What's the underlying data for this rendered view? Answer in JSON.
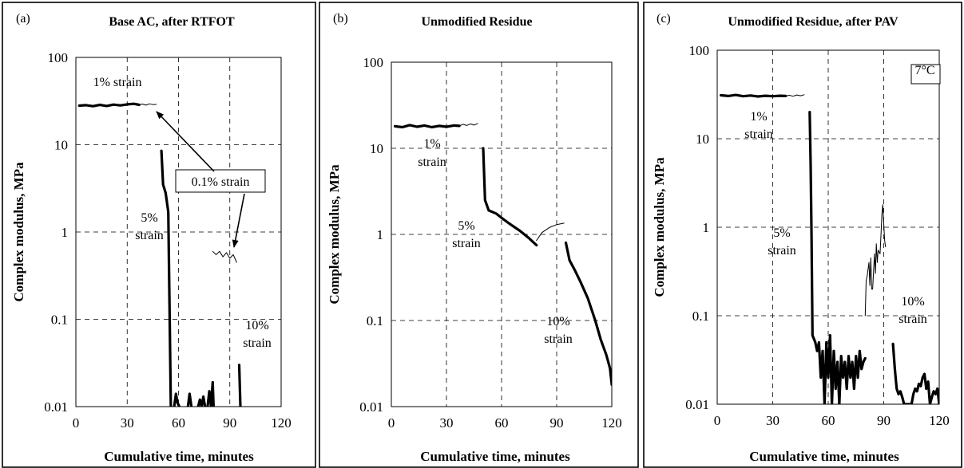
{
  "chart_data": [
    {
      "type": "line",
      "panel_label": "(a)",
      "title": "Base AC, after RTFOT",
      "xlabel": "Cumulative time, minutes",
      "ylabel": "Complex modulus, MPa",
      "xlim": [
        0,
        120
      ],
      "ylim": [
        0.01,
        100
      ],
      "yscale": "log",
      "xticks": [
        "0",
        "30",
        "60",
        "90",
        "120"
      ],
      "yticks": [
        "0.01",
        "0.1",
        "1",
        "10",
        "100"
      ],
      "grid": true,
      "series": [
        {
          "style": "thick",
          "points": [
            [
              2,
              28
            ],
            [
              6,
              28.4
            ],
            [
              10,
              27.6
            ],
            [
              14,
              28.6
            ],
            [
              18,
              27.8
            ],
            [
              22,
              28.8
            ],
            [
              26,
              28.2
            ],
            [
              30,
              29
            ],
            [
              34,
              29.4
            ],
            [
              37,
              28.6
            ]
          ]
        },
        {
          "style": "thin",
          "points": [
            [
              37,
              28.6
            ],
            [
              39,
              29.2
            ],
            [
              41,
              28.4
            ],
            [
              43,
              29.4
            ],
            [
              45,
              28.8
            ],
            [
              47,
              29
            ]
          ]
        },
        {
          "style": "thick",
          "points": [
            [
              50,
              8.5
            ],
            [
              51,
              3.5
            ],
            [
              52.5,
              2.8
            ],
            [
              54,
              1.7
            ],
            [
              55.5,
              0.01
            ]
          ]
        },
        {
          "style": "thick",
          "points": [
            [
              57.5,
              0.01
            ],
            [
              58.5,
              0.014
            ],
            [
              59.5,
              0.011
            ],
            [
              60.5,
              0.01
            ]
          ]
        },
        {
          "style": "thick",
          "points": [
            [
              65.5,
              0.01
            ],
            [
              66.5,
              0.014
            ],
            [
              67.5,
              0.01
            ]
          ]
        },
        {
          "style": "thick",
          "points": [
            [
              71.5,
              0.01
            ],
            [
              72.5,
              0.012
            ],
            [
              73.5,
              0.01
            ],
            [
              74.5,
              0.013
            ],
            [
              75.5,
              0.01
            ]
          ]
        },
        {
          "style": "thick",
          "points": [
            [
              77,
              0.01
            ],
            [
              78,
              0.015
            ],
            [
              79,
              0.01
            ],
            [
              80,
              0.019
            ],
            [
              80.5,
              0.01
            ]
          ]
        },
        {
          "style": "thin",
          "points": [
            [
              80,
              0.6
            ],
            [
              82,
              0.55
            ],
            [
              84,
              0.6
            ],
            [
              86,
              0.52
            ],
            [
              88,
              0.58
            ],
            [
              90,
              0.5
            ],
            [
              92,
              0.55
            ],
            [
              94,
              0.45
            ]
          ]
        },
        {
          "style": "thick",
          "points": [
            [
              95.5,
              0.03
            ],
            [
              96.2,
              0.01
            ]
          ]
        }
      ],
      "annotations": [
        {
          "text": "1% strain",
          "lines": [
            "1% strain"
          ]
        },
        {
          "text": "5% strain",
          "lines": [
            "5%",
            "strain"
          ]
        },
        {
          "text": "10% strain",
          "lines": [
            "10%",
            "strain"
          ]
        },
        {
          "text": "0.1% strain",
          "lines": [
            "0.1% strain"
          ],
          "boxed": true
        }
      ]
    },
    {
      "type": "line",
      "panel_label": "(b)",
      "title": "Unmodified Residue",
      "xlabel": "Cumulative time, minutes",
      "ylabel": "Complex modulus, MPa",
      "xlim": [
        0,
        120
      ],
      "ylim": [
        0.01,
        100
      ],
      "yscale": "log",
      "xticks": [
        "0",
        "30",
        "60",
        "90",
        "120"
      ],
      "yticks": [
        "0.01",
        "0.1",
        "1",
        "10",
        "100"
      ],
      "grid": true,
      "series": [
        {
          "style": "thick",
          "points": [
            [
              2,
              18
            ],
            [
              6,
              17.6
            ],
            [
              10,
              18.6
            ],
            [
              14,
              17.8
            ],
            [
              18,
              18.4
            ],
            [
              22,
              17.6
            ],
            [
              26,
              18.2
            ],
            [
              30,
              17.8
            ],
            [
              34,
              18.4
            ],
            [
              37,
              18.2
            ]
          ]
        },
        {
          "style": "thin",
          "points": [
            [
              37,
              18.2
            ],
            [
              39,
              19
            ],
            [
              41,
              18.4
            ],
            [
              43,
              19.2
            ],
            [
              45,
              18.6
            ],
            [
              47,
              19.4
            ]
          ]
        },
        {
          "style": "thick",
          "points": [
            [
              50,
              10
            ],
            [
              51,
              2.5
            ],
            [
              53,
              1.9
            ],
            [
              57,
              1.75
            ],
            [
              61,
              1.5
            ],
            [
              65,
              1.3
            ],
            [
              70,
              1.1
            ],
            [
              75,
              0.9
            ],
            [
              79,
              0.75
            ]
          ]
        },
        {
          "style": "thin",
          "points": [
            [
              79,
              0.85
            ],
            [
              82,
              1.05
            ],
            [
              86,
              1.2
            ],
            [
              90,
              1.3
            ],
            [
              94,
              1.35
            ]
          ]
        },
        {
          "style": "thick",
          "points": [
            [
              95,
              0.8
            ],
            [
              97,
              0.5
            ],
            [
              100,
              0.38
            ],
            [
              103,
              0.28
            ],
            [
              107,
              0.18
            ],
            [
              111,
              0.1
            ],
            [
              114,
              0.06
            ],
            [
              117,
              0.04
            ],
            [
              119,
              0.028
            ],
            [
              120,
              0.018
            ]
          ]
        }
      ],
      "annotations": [
        {
          "text": "1% strain",
          "lines": [
            "1%",
            "strain"
          ]
        },
        {
          "text": "5% strain",
          "lines": [
            "5%",
            "strain"
          ]
        },
        {
          "text": "10% strain",
          "lines": [
            "10%",
            "strain"
          ]
        }
      ]
    },
    {
      "type": "line",
      "panel_label": "(c)",
      "title": "Unmodified Residue, after PAV",
      "xlabel": "Cumulative time, minutes",
      "ylabel": "Complex modulus, MPa",
      "xlim": [
        0,
        120
      ],
      "ylim": [
        0.01,
        100
      ],
      "yscale": "log",
      "xticks": [
        "0",
        "30",
        "60",
        "90",
        "120"
      ],
      "yticks": [
        "0.01",
        "0.1",
        "1",
        "10",
        "100"
      ],
      "grid": true,
      "series": [
        {
          "style": "thick",
          "points": [
            [
              2,
              31
            ],
            [
              6,
              30.4
            ],
            [
              10,
              31.2
            ],
            [
              14,
              30.2
            ],
            [
              18,
              30.8
            ],
            [
              22,
              30
            ],
            [
              26,
              30.6
            ],
            [
              30,
              30.2
            ],
            [
              34,
              30.6
            ],
            [
              37,
              30.4
            ]
          ]
        },
        {
          "style": "thin",
          "points": [
            [
              37,
              30.4
            ],
            [
              39,
              31
            ],
            [
              41,
              30.2
            ],
            [
              43,
              31.2
            ],
            [
              45,
              30.6
            ],
            [
              47,
              31.4
            ]
          ]
        },
        {
          "style": "thick",
          "points": [
            [
              50,
              20
            ],
            [
              50.5,
              5
            ],
            [
              51,
              0.8
            ],
            [
              51.5,
              0.06
            ],
            [
              53,
              0.05
            ],
            [
              54,
              0.04
            ],
            [
              55,
              0.05
            ],
            [
              56,
              0.02
            ],
            [
              57,
              0.04
            ],
            [
              58,
              0.01
            ],
            [
              59,
              0.05
            ],
            [
              60,
              0.02
            ],
            [
              61,
              0.06
            ],
            [
              62,
              0.01
            ],
            [
              63,
              0.04
            ],
            [
              64,
              0.015
            ],
            [
              65,
              0.03
            ],
            [
              66,
              0.01
            ],
            [
              67,
              0.035
            ],
            [
              68,
              0.02
            ],
            [
              69,
              0.03
            ],
            [
              70,
              0.015
            ],
            [
              71,
              0.035
            ],
            [
              72,
              0.02
            ],
            [
              73,
              0.03
            ],
            [
              74,
              0.015
            ],
            [
              75,
              0.035
            ],
            [
              76,
              0.02
            ],
            [
              77,
              0.04
            ],
            [
              78,
              0.025
            ],
            [
              79,
              0.03
            ],
            [
              80,
              0.033
            ]
          ]
        },
        {
          "style": "thin",
          "points": [
            [
              80,
              0.1
            ],
            [
              80.5,
              0.25
            ],
            [
              81,
              0.28
            ],
            [
              82,
              0.4
            ],
            [
              82.5,
              0.22
            ],
            [
              83,
              0.45
            ],
            [
              83.5,
              0.2
            ],
            [
              84,
              0.2
            ],
            [
              85,
              0.5
            ],
            [
              85.5,
              0.3
            ],
            [
              86,
              0.65
            ],
            [
              86.5,
              0.4
            ],
            [
              87,
              0.55
            ],
            [
              88,
              0.5
            ],
            [
              88.5,
              0.8
            ],
            [
              89,
              1.4
            ],
            [
              89.5,
              1.8
            ],
            [
              90,
              1.1
            ],
            [
              90.5,
              0.7
            ],
            [
              91,
              0.6
            ]
          ]
        },
        {
          "style": "thick",
          "points": [
            [
              95,
              0.048
            ],
            [
              96,
              0.025
            ],
            [
              97,
              0.015
            ],
            [
              98,
              0.013
            ],
            [
              99,
              0.014
            ],
            [
              100,
              0.012
            ],
            [
              101,
              0.01
            ],
            [
              103,
              0.008
            ],
            [
              105,
              0.01
            ],
            [
              106,
              0.013
            ],
            [
              107,
              0.015
            ],
            [
              108,
              0.014
            ],
            [
              109,
              0.017
            ],
            [
              110,
              0.016
            ],
            [
              111,
              0.02
            ],
            [
              112,
              0.022
            ],
            [
              113,
              0.015
            ],
            [
              114,
              0.018
            ],
            [
              115,
              0.01
            ],
            [
              116,
              0.012
            ],
            [
              117,
              0.014
            ],
            [
              118,
              0.013
            ],
            [
              119,
              0.015
            ],
            [
              120,
              0.01
            ]
          ]
        }
      ],
      "annotations": [
        {
          "text": "1% strain",
          "lines": [
            "1%",
            "strain"
          ]
        },
        {
          "text": "5% strain",
          "lines": [
            "5%",
            "strain"
          ]
        },
        {
          "text": "10% strain",
          "lines": [
            "10%",
            "strain"
          ]
        },
        {
          "text": "7°C",
          "lines": [
            "7°C"
          ],
          "boxed": true
        }
      ]
    }
  ]
}
